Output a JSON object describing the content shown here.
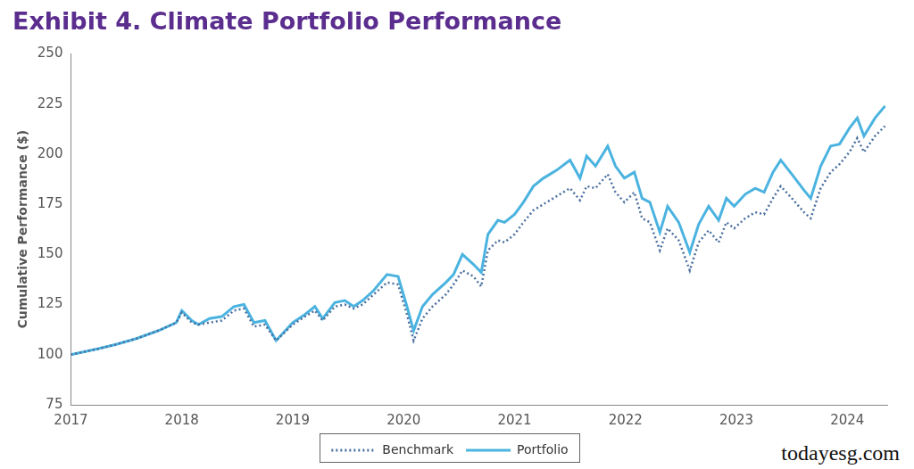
{
  "chart_data": {
    "type": "line",
    "title": "Exhibit 4. Climate Portfolio Performance",
    "y_label": "Cumulative Performance ($)",
    "annotations": [
      "todayesg.com"
    ],
    "x": [
      2017.0,
      2017.25,
      2017.4,
      2017.59,
      2017.79,
      2017.95,
      2018.0,
      2018.09,
      2018.15,
      2018.25,
      2018.36,
      2018.47,
      2018.56,
      2018.65,
      2018.75,
      2018.85,
      2019.0,
      2019.11,
      2019.2,
      2019.27,
      2019.38,
      2019.47,
      2019.55,
      2019.63,
      2019.73,
      2019.85,
      2019.95,
      2020.03,
      2020.09,
      2020.17,
      2020.26,
      2020.38,
      2020.45,
      2020.53,
      2020.63,
      2020.7,
      2020.76,
      2020.85,
      2020.91,
      2021.0,
      2021.08,
      2021.17,
      2021.26,
      2021.38,
      2021.5,
      2021.59,
      2021.65,
      2021.73,
      2021.84,
      2021.91,
      2021.99,
      2022.08,
      2022.15,
      2022.22,
      2022.31,
      2022.38,
      2022.48,
      2022.58,
      2022.66,
      2022.75,
      2022.84,
      2022.91,
      2022.98,
      2023.08,
      2023.17,
      2023.25,
      2023.33,
      2023.4,
      2023.5,
      2023.61,
      2023.67,
      2023.76,
      2023.85,
      2023.93,
      2024.02,
      2024.09,
      2024.15,
      2024.25,
      2024.34
    ],
    "series": [
      {
        "name": "Benchmark",
        "color": "#4a6f9f",
        "line_style": "dotted",
        "marker": "none",
        "values": [
          100,
          103,
          105,
          108,
          112,
          116,
          121,
          116,
          115,
          116,
          117,
          122,
          123,
          114,
          115,
          107,
          115,
          119,
          122,
          117,
          124,
          125,
          123,
          125,
          130,
          136,
          135,
          120,
          107,
          118,
          124,
          130,
          135,
          142,
          139,
          134,
          152,
          157,
          156,
          160,
          166,
          172,
          175,
          179,
          183,
          177,
          184,
          183,
          190,
          181,
          176,
          181,
          168,
          166,
          152,
          163,
          157,
          142,
          156,
          162,
          156,
          166,
          163,
          168,
          171,
          170,
          178,
          184,
          178,
          171,
          168,
          183,
          191,
          195,
          201,
          208,
          201,
          209,
          214
        ]
      },
      {
        "name": "Portfolio",
        "color": "#4bb3e0",
        "line_style": "solid",
        "marker": "none",
        "values": [
          100,
          103,
          105,
          108,
          112,
          116,
          122,
          117,
          115,
          118,
          119,
          124,
          125,
          116,
          117,
          107,
          116,
          120,
          124,
          118,
          126,
          127,
          124,
          127,
          132,
          140,
          139,
          124,
          112,
          124,
          130,
          136,
          140,
          150,
          145,
          141,
          160,
          167,
          166,
          170,
          176,
          184,
          188,
          192,
          197,
          188,
          199,
          194,
          204,
          194,
          188,
          191,
          178,
          176,
          161,
          174,
          166,
          151,
          165,
          174,
          167,
          178,
          174,
          180,
          183,
          181,
          191,
          197,
          190,
          182,
          178,
          194,
          204,
          205,
          213,
          218,
          209,
          218,
          224
        ]
      }
    ],
    "xlim": [
      2017,
      2024.36
    ],
    "xticks": [
      2017,
      2018,
      2019,
      2020,
      2021,
      2022,
      2023,
      2024
    ],
    "ylim": [
      75,
      250
    ],
    "yticks": [
      75,
      100,
      125,
      150,
      175,
      200,
      225,
      250
    ],
    "grid": false,
    "legend": "bottom"
  }
}
